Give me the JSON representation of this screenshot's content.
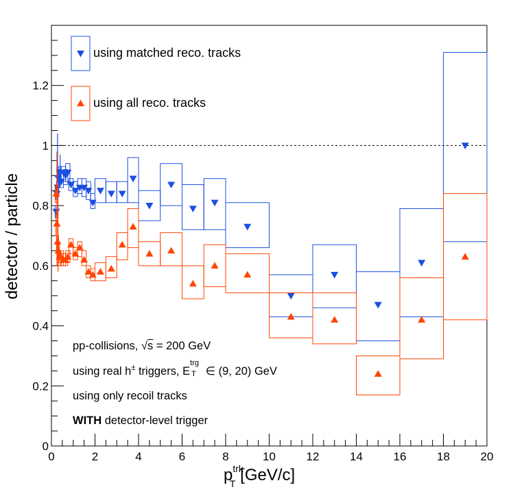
{
  "chart_data": {
    "type": "scatter",
    "xlabel": {
      "main": "p",
      "sup": "trk",
      "sub": "T",
      "unit": "[GeV/c]"
    },
    "ylabel": "detector / particle",
    "xlim": [
      0,
      20
    ],
    "ylim": [
      0,
      1.4
    ],
    "x_ticks": [
      "0",
      "2",
      "4",
      "6",
      "8",
      "10",
      "12",
      "14",
      "16",
      "18",
      "20"
    ],
    "y_ticks": [
      "0",
      "0.2",
      "0.4",
      "0.6",
      "0.8",
      "1",
      "1.2"
    ],
    "reference_line": {
      "y": 1.0,
      "style": "dashed"
    },
    "legend": [
      {
        "label": "using matched reco. tracks",
        "marker": "triangle-down",
        "color": "#1b4fe0"
      },
      {
        "label": "using all reco. tracks",
        "marker": "triangle-up",
        "color": "#ff4500"
      }
    ],
    "annotations": {
      "line1": {
        "text": "pp-collisions, ",
        "sqrt": "s",
        "rest": " = 200 GeV"
      },
      "line2": {
        "text": "using real h",
        "sup": "±",
        "mid": " triggers, E",
        "stack_up": "trg",
        "stack_down": "T",
        "rest": " ∈ (9, 20) GeV"
      },
      "line3": "using only recoil tracks",
      "line4": {
        "bold": "WITH",
        "rest": " detector-level trigger"
      }
    },
    "series": [
      {
        "name": "using matched reco. tracks",
        "color": "#1b4fe0",
        "marker": "triangle-down",
        "points": [
          [
            0.22,
            0.78,
            0.76,
            0.8,
            0.05
          ],
          [
            0.25,
            0.84,
            0.82,
            0.86,
            0.05
          ],
          [
            0.28,
            0.86,
            0.83,
            0.88,
            0.05
          ],
          [
            0.32,
            0.89,
            0.86,
            0.92,
            0.05
          ],
          [
            0.37,
            0.91,
            0.88,
            0.93,
            0.05
          ],
          [
            0.45,
            0.88,
            0.86,
            0.91,
            0.1
          ],
          [
            0.55,
            0.91,
            0.88,
            0.93,
            0.1
          ],
          [
            0.65,
            0.9,
            0.87,
            0.92,
            0.1
          ],
          [
            0.75,
            0.91,
            0.88,
            0.94,
            0.1
          ],
          [
            0.9,
            0.87,
            0.85,
            0.89,
            0.1
          ],
          [
            1.1,
            0.85,
            0.83,
            0.88,
            0.1
          ],
          [
            1.3,
            0.86,
            0.84,
            0.89,
            0.1
          ],
          [
            1.5,
            0.86,
            0.83,
            0.89,
            0.1
          ],
          [
            1.7,
            0.85,
            0.82,
            0.88,
            0.1
          ],
          [
            1.9,
            0.81,
            0.79,
            0.84,
            0.1
          ],
          [
            2.25,
            0.85,
            0.81,
            0.89,
            0.25
          ],
          [
            2.75,
            0.84,
            0.81,
            0.88,
            0.25
          ],
          [
            3.25,
            0.84,
            0.81,
            0.88,
            0.25
          ],
          [
            3.75,
            0.89,
            0.81,
            0.96,
            0.25
          ],
          [
            4.5,
            0.8,
            0.75,
            0.85,
            0.5
          ],
          [
            5.5,
            0.87,
            0.8,
            0.94,
            0.5
          ],
          [
            6.5,
            0.79,
            0.72,
            0.87,
            0.5
          ],
          [
            7.5,
            0.81,
            0.72,
            0.89,
            0.5
          ],
          [
            9,
            0.73,
            0.66,
            0.81,
            1
          ],
          [
            11,
            0.5,
            0.43,
            0.57,
            1
          ],
          [
            13,
            0.57,
            0.46,
            0.67,
            1
          ],
          [
            15,
            0.47,
            0.35,
            0.58,
            1
          ],
          [
            17,
            0.61,
            0.43,
            0.79,
            1
          ],
          [
            19,
            1.0,
            0.68,
            1.31,
            1
          ]
        ],
        "stat_errors": [
          [
            0.28,
            0.86,
            0.83,
            1.04
          ],
          [
            0.4,
            0.91,
            0.87,
            0.97
          ]
        ]
      },
      {
        "name": "using all reco. tracks",
        "color": "#ff4500",
        "marker": "triangle-up",
        "points": [
          [
            0.22,
            0.84,
            0.81,
            0.87,
            0.05
          ],
          [
            0.25,
            0.74,
            0.7,
            0.78,
            0.05
          ],
          [
            0.28,
            0.68,
            0.65,
            0.7,
            0.05
          ],
          [
            0.32,
            0.65,
            0.62,
            0.68,
            0.05
          ],
          [
            0.37,
            0.63,
            0.6,
            0.65,
            0.05
          ],
          [
            0.45,
            0.63,
            0.61,
            0.65,
            0.1
          ],
          [
            0.55,
            0.62,
            0.6,
            0.64,
            0.1
          ],
          [
            0.65,
            0.62,
            0.6,
            0.64,
            0.1
          ],
          [
            0.75,
            0.63,
            0.61,
            0.65,
            0.1
          ],
          [
            0.9,
            0.67,
            0.64,
            0.69,
            0.1
          ],
          [
            1.1,
            0.64,
            0.62,
            0.66,
            0.1
          ],
          [
            1.3,
            0.66,
            0.63,
            0.68,
            0.1
          ],
          [
            1.5,
            0.62,
            0.6,
            0.65,
            0.1
          ],
          [
            1.7,
            0.58,
            0.56,
            0.6,
            0.1
          ],
          [
            1.9,
            0.57,
            0.55,
            0.59,
            0.1
          ],
          [
            2.25,
            0.58,
            0.55,
            0.61,
            0.25
          ],
          [
            2.75,
            0.59,
            0.56,
            0.63,
            0.25
          ],
          [
            3.25,
            0.67,
            0.62,
            0.71,
            0.25
          ],
          [
            3.75,
            0.73,
            0.66,
            0.79,
            0.25
          ],
          [
            4.5,
            0.64,
            0.6,
            0.68,
            0.5
          ],
          [
            5.5,
            0.65,
            0.6,
            0.71,
            0.5
          ],
          [
            6.5,
            0.54,
            0.49,
            0.6,
            0.5
          ],
          [
            7.5,
            0.6,
            0.53,
            0.67,
            0.5
          ],
          [
            9,
            0.57,
            0.51,
            0.64,
            1
          ],
          [
            11,
            0.43,
            0.36,
            0.51,
            1
          ],
          [
            13,
            0.42,
            0.34,
            0.51,
            1
          ],
          [
            15,
            0.24,
            0.17,
            0.3,
            1
          ],
          [
            17,
            0.42,
            0.29,
            0.56,
            1
          ],
          [
            19,
            0.63,
            0.42,
            0.84,
            1
          ]
        ],
        "stat_errors": [
          [
            0.25,
            0.72,
            0.6,
            0.98
          ],
          [
            0.3,
            0.65,
            0.58,
            0.87
          ]
        ]
      }
    ]
  }
}
